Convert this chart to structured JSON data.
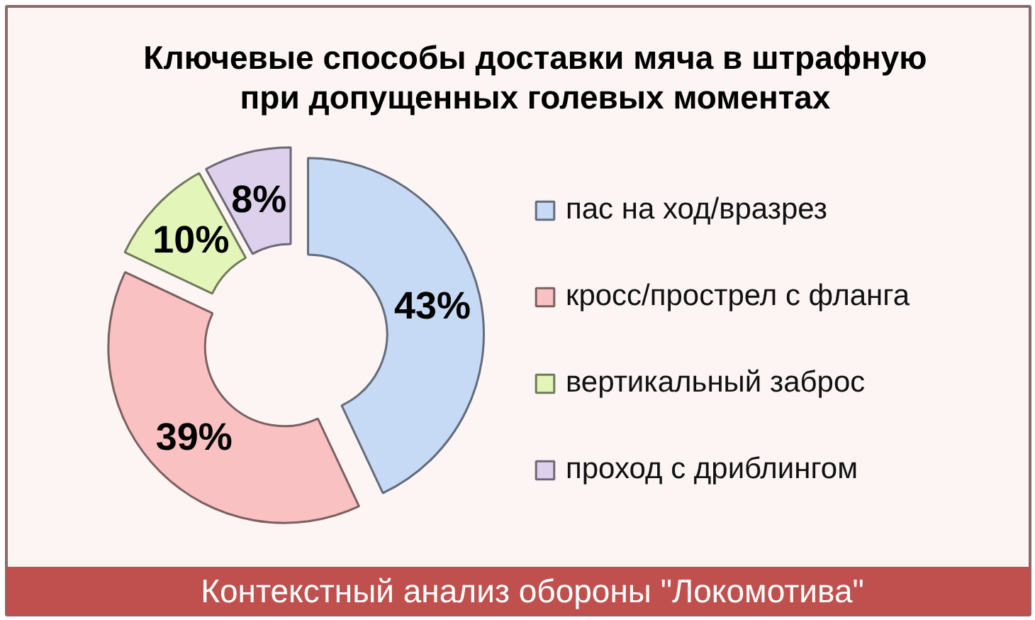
{
  "chart_data": {
    "type": "donut",
    "title": "Ключевые способы доставки мяча в штрафную при допущенных голевых моментах",
    "categories": [
      "пас на ход/вразрез",
      "кросс/прострел с фланга",
      "вертикальный заброс",
      "проход с дриблингом"
    ],
    "values": [
      43,
      39,
      10,
      8
    ],
    "colors": [
      "#c6d9f5",
      "#f9c1c1",
      "#e3f5b8",
      "#dcd0ec"
    ],
    "value_labels": [
      "43%",
      "39%",
      "10%",
      "8%"
    ],
    "legend": "right",
    "annotations": [
      "Контекстный анализ обороны \"Локомотива\""
    ]
  }
}
